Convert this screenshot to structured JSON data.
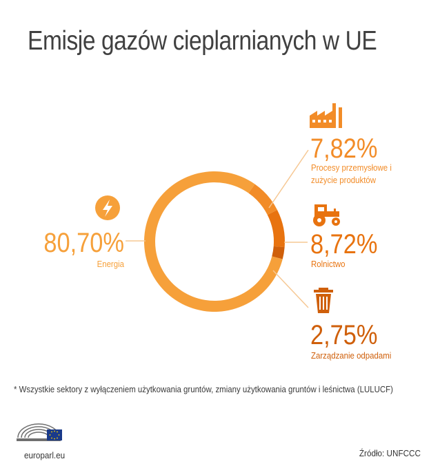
{
  "title": "Emisje gazów cieplarnianych w UE",
  "footnote": "* Wszystkie sektory z wyłączeniem użytkowania gruntów, zmiany użytkowania gruntów i leśnictwa (LULUCF)",
  "site": "europarl.eu",
  "source": "Źródło: UNFCCC",
  "chart_data": {
    "type": "pie",
    "variant": "donut",
    "slices": [
      {
        "label": "Energia",
        "value": 80.7,
        "display": "80,70%",
        "color": "#f6a03a",
        "icon": "lightning-icon"
      },
      {
        "label": "Procesy przemysłowe i zużycie produktów",
        "label_lines": [
          "Procesy przemysłowe i",
          "zużycie produktów"
        ],
        "value": 7.82,
        "display": "7,82%",
        "color": "#f28c28",
        "icon": "factory-icon"
      },
      {
        "label": "Rolnictwo",
        "value": 8.72,
        "display": "8,72%",
        "color": "#e8730f",
        "icon": "tractor-icon"
      },
      {
        "label": "Zarządzanie odpadami",
        "value": 2.75,
        "display": "2,75%",
        "color": "#cf5f0a",
        "icon": "trash-can-icon"
      }
    ]
  },
  "colors": {
    "text": "#404040",
    "energy_text": "#f6a03a",
    "industry_text": "#f28c28",
    "agri_text": "#e8730f",
    "waste_text": "#cf5f0a",
    "leader": "#f6c894"
  }
}
